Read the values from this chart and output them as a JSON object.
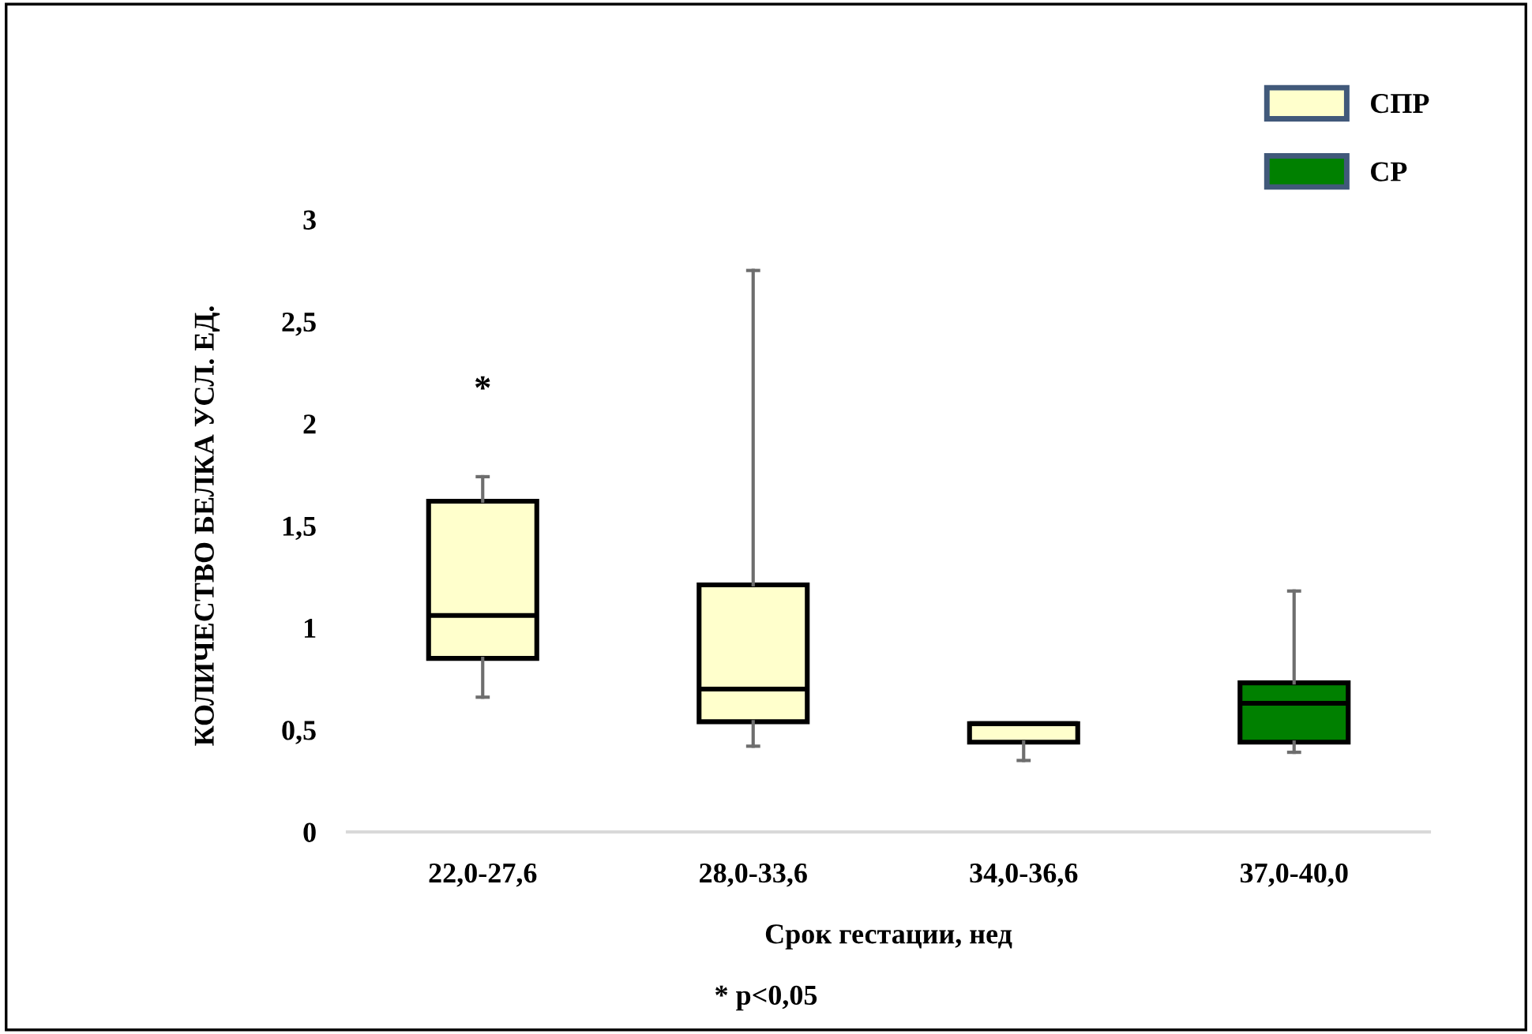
{
  "chart_data": {
    "type": "box",
    "xlabel": "Срок гестации, нед",
    "ylabel": "КОЛИЧЕСТВО БЕЛКА УСЛ. ЕД.",
    "categories": [
      "22,0-27,6",
      "28,0-33,6",
      "34,0-36,6",
      "37,0-40,0"
    ],
    "series": [
      {
        "name": "СПР",
        "color": "#ffffcc",
        "boxes": [
          {
            "low": 0.66,
            "q1": 0.85,
            "median": 1.06,
            "q3": 1.62,
            "high": 1.74
          },
          {
            "low": 0.42,
            "q1": 0.54,
            "median": 0.7,
            "q3": 1.21,
            "high": 2.75
          },
          {
            "low": 0.35,
            "q1": 0.44,
            "median": 0.53,
            "q3": 0.53,
            "high": 0.53
          },
          null
        ]
      },
      {
        "name": "СР",
        "color": "#008000",
        "boxes": [
          null,
          null,
          null,
          {
            "low": 0.39,
            "q1": 0.44,
            "median": 0.63,
            "q3": 0.73,
            "high": 1.18
          }
        ]
      }
    ],
    "ylim": [
      0,
      3
    ],
    "yticks": [
      0,
      {
        "value": 0.5,
        "label": "0,5"
      },
      1,
      {
        "value": 1.5,
        "label": "1,5"
      },
      2,
      {
        "value": 2.5,
        "label": "2,5"
      },
      3
    ],
    "grid": false,
    "legend": "top right",
    "annotations": [
      "*",
      "* p<0,05"
    ]
  }
}
